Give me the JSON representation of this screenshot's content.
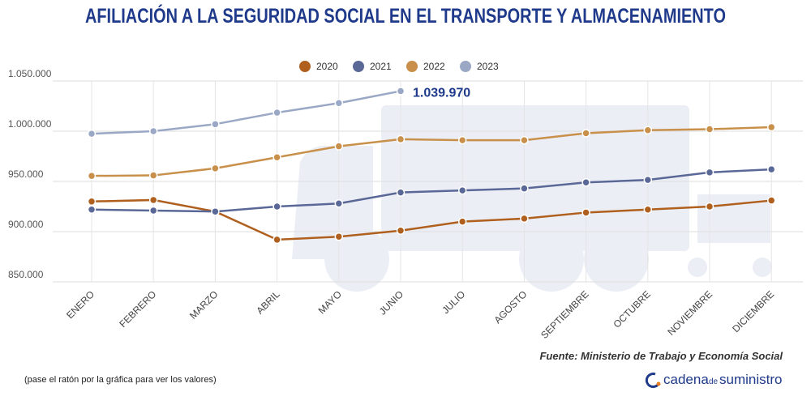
{
  "chart_data": {
    "type": "line",
    "title": "AFILIACIÓN A LA SEGURIDAD SOCIAL EN EL TRANSPORTE Y ALMACENAMIENTO",
    "categories": [
      "ENERO",
      "FEBRERO",
      "MARZO",
      "ABRIL",
      "MAYO",
      "JUNIO",
      "JULIO",
      "AGOSTO",
      "SEPTIEMBRE",
      "OCTUBRE",
      "NOVIEMBRE",
      "DICIEMBRE"
    ],
    "series": [
      {
        "name": "2020",
        "color": "#b0601e",
        "values": [
          930000,
          931500,
          920000,
          892000,
          895000,
          901000,
          910000,
          913000,
          919000,
          922000,
          925000,
          931000
        ]
      },
      {
        "name": "2021",
        "color": "#5a6898",
        "values": [
          922000,
          921000,
          920000,
          925000,
          928000,
          939000,
          941000,
          943000,
          949000,
          951500,
          959000,
          962000
        ]
      },
      {
        "name": "2022",
        "color": "#c8904a",
        "values": [
          955500,
          956000,
          963000,
          974000,
          985000,
          992000,
          991000,
          991000,
          998000,
          1001000,
          1002000,
          1004000
        ]
      },
      {
        "name": "2023",
        "color": "#9aa8c6",
        "values": [
          997500,
          1000000,
          1007000,
          1018500,
          1028000,
          1039970,
          null,
          null,
          null,
          null,
          null,
          null
        ],
        "value_labels": [
          null,
          null,
          null,
          null,
          null,
          "1.039.970",
          null,
          null,
          null,
          null,
          null,
          null
        ]
      }
    ],
    "ylim": [
      850000,
      1050000
    ],
    "yticks": [
      {
        "value": 850000,
        "label": "850.000"
      },
      {
        "value": 900000,
        "label": "900.000"
      },
      {
        "value": 950000,
        "label": "950.000"
      },
      {
        "value": 1000000,
        "label": "1.000.000"
      },
      {
        "value": 1050000,
        "label": "1.050.000"
      }
    ],
    "grid": true,
    "legend": "top",
    "source": "Fuente: Ministerio de Trabajo y Economía Social",
    "note": "(pase el ratón por la gráfica para ver los valores)",
    "logo": {
      "part1": "cadena",
      "part2": "de",
      "part3": "suministro"
    }
  }
}
